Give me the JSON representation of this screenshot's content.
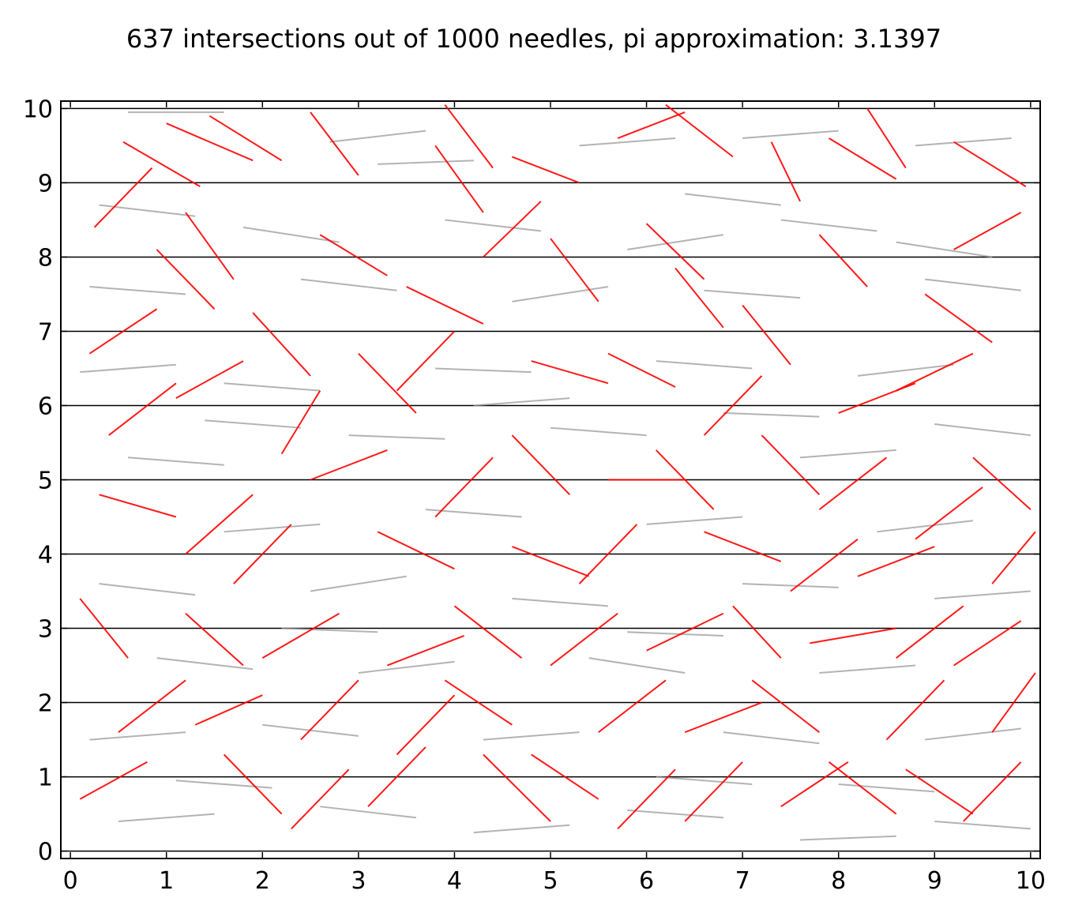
{
  "chart_data": {
    "type": "scatter",
    "title": "637 intersections out of 1000 needles, pi approximation: 3.1397",
    "xlabel": "",
    "ylabel": "",
    "xlim": [
      -0.1,
      10.1
    ],
    "ylim": [
      -0.1,
      10.1
    ],
    "x_ticks": [
      "0",
      "1",
      "2",
      "3",
      "4",
      "5",
      "6",
      "7",
      "8",
      "9",
      "10"
    ],
    "y_ticks": [
      "0",
      "1",
      "2",
      "3",
      "4",
      "5",
      "6",
      "7",
      "8",
      "9",
      "10"
    ],
    "horizontal_lines_y": [
      0,
      1,
      2,
      3,
      4,
      5,
      6,
      7,
      8,
      9,
      10
    ],
    "needle_length": 1,
    "needle_count": 1000,
    "intersections": 637,
    "pi_approximation": 3.1397,
    "colors": {
      "intersecting": "#ff0000",
      "non_intersecting": "#999999",
      "lines": "#000000"
    },
    "series": [
      {
        "name": "",
        "color": "#ff0000",
        "segments": [
          [
            0.55,
            9.55,
            1.35,
            8.95
          ],
          [
            1.45,
            9.9,
            2.2,
            9.3
          ],
          [
            2.5,
            9.95,
            3.0,
            9.1
          ],
          [
            3.8,
            9.5,
            4.3,
            8.6
          ],
          [
            4.6,
            9.35,
            5.3,
            9.0
          ],
          [
            6.2,
            10.05,
            6.9,
            9.35
          ],
          [
            7.3,
            9.55,
            7.6,
            8.75
          ],
          [
            8.3,
            10.0,
            8.7,
            9.2
          ],
          [
            9.2,
            9.55,
            9.95,
            8.95
          ],
          [
            0.25,
            8.4,
            0.85,
            9.2
          ],
          [
            1.2,
            8.6,
            1.7,
            7.7
          ],
          [
            2.6,
            8.3,
            3.3,
            7.75
          ],
          [
            3.5,
            7.6,
            4.3,
            7.1
          ],
          [
            5.0,
            8.25,
            5.5,
            7.4
          ],
          [
            6.3,
            7.85,
            6.8,
            7.05
          ],
          [
            7.8,
            8.3,
            8.3,
            7.6
          ],
          [
            8.9,
            7.5,
            9.6,
            6.85
          ],
          [
            0.2,
            6.7,
            0.9,
            7.3
          ],
          [
            1.9,
            7.25,
            2.5,
            6.4
          ],
          [
            3.4,
            6.2,
            4.0,
            7.0
          ],
          [
            5.6,
            6.7,
            6.3,
            6.25
          ],
          [
            7.0,
            7.35,
            7.5,
            6.55
          ],
          [
            8.6,
            6.2,
            9.4,
            6.7
          ],
          [
            0.4,
            5.6,
            1.1,
            6.3
          ],
          [
            2.2,
            5.35,
            2.6,
            6.2
          ],
          [
            4.6,
            5.6,
            5.2,
            4.8
          ],
          [
            6.1,
            5.4,
            6.7,
            4.6
          ],
          [
            7.8,
            4.6,
            8.5,
            5.3
          ],
          [
            9.4,
            5.3,
            10.0,
            4.6
          ],
          [
            0.3,
            4.8,
            1.1,
            4.5
          ],
          [
            1.7,
            3.6,
            2.3,
            4.4
          ],
          [
            3.2,
            4.3,
            4.0,
            3.8
          ],
          [
            5.3,
            3.6,
            5.9,
            4.4
          ],
          [
            6.6,
            4.3,
            7.4,
            3.9
          ],
          [
            8.2,
            3.7,
            9.0,
            4.1
          ],
          [
            0.1,
            3.4,
            0.6,
            2.6
          ],
          [
            2.0,
            2.6,
            2.8,
            3.2
          ],
          [
            4.0,
            3.3,
            4.7,
            2.6
          ],
          [
            6.0,
            2.7,
            6.8,
            3.2
          ],
          [
            7.7,
            2.8,
            8.6,
            3.0
          ],
          [
            9.2,
            2.5,
            9.9,
            3.1
          ],
          [
            0.5,
            1.6,
            1.2,
            2.3
          ],
          [
            2.4,
            1.5,
            3.0,
            2.3
          ],
          [
            3.9,
            2.3,
            4.6,
            1.7
          ],
          [
            5.5,
            1.6,
            6.2,
            2.3
          ],
          [
            7.1,
            2.3,
            7.8,
            1.6
          ],
          [
            8.5,
            1.5,
            9.1,
            2.3
          ],
          [
            0.1,
            0.7,
            0.8,
            1.2
          ],
          [
            1.6,
            1.3,
            2.2,
            0.5
          ],
          [
            3.1,
            0.6,
            3.7,
            1.4
          ],
          [
            4.8,
            1.3,
            5.5,
            0.7
          ],
          [
            6.4,
            0.4,
            7.0,
            1.2
          ],
          [
            7.9,
            1.2,
            8.6,
            0.5
          ],
          [
            9.3,
            0.4,
            9.9,
            1.2
          ],
          [
            1.0,
            9.8,
            1.9,
            9.3
          ],
          [
            3.9,
            10.05,
            4.4,
            9.2
          ],
          [
            5.7,
            9.6,
            6.4,
            9.95
          ],
          [
            7.9,
            9.6,
            8.6,
            9.05
          ],
          [
            0.9,
            8.1,
            1.5,
            7.3
          ],
          [
            4.3,
            8.0,
            4.9,
            8.75
          ],
          [
            6.0,
            8.45,
            6.6,
            7.7
          ],
          [
            9.2,
            8.1,
            9.9,
            8.6
          ],
          [
            1.1,
            6.1,
            1.8,
            6.6
          ],
          [
            3.0,
            6.7,
            3.6,
            5.9
          ],
          [
            4.8,
            6.6,
            5.6,
            6.3
          ],
          [
            6.6,
            5.6,
            7.2,
            6.4
          ],
          [
            8.0,
            5.9,
            8.8,
            6.3
          ],
          [
            2.5,
            5.0,
            3.3,
            5.4
          ],
          [
            3.8,
            4.5,
            4.4,
            5.3
          ],
          [
            5.6,
            5.0,
            6.4,
            5.0
          ],
          [
            7.2,
            5.6,
            7.8,
            4.8
          ],
          [
            8.8,
            4.2,
            9.5,
            4.9
          ],
          [
            1.2,
            4.0,
            1.9,
            4.8
          ],
          [
            4.6,
            4.1,
            5.4,
            3.7
          ],
          [
            7.5,
            3.5,
            8.2,
            4.2
          ],
          [
            9.6,
            3.6,
            10.05,
            4.3
          ],
          [
            1.2,
            3.2,
            1.8,
            2.5
          ],
          [
            3.3,
            2.5,
            4.1,
            2.9
          ],
          [
            5.0,
            2.5,
            5.7,
            3.2
          ],
          [
            6.9,
            3.3,
            7.4,
            2.6
          ],
          [
            8.6,
            2.6,
            9.3,
            3.3
          ],
          [
            1.3,
            1.7,
            2.0,
            2.1
          ],
          [
            3.4,
            1.3,
            4.0,
            2.1
          ],
          [
            6.4,
            1.6,
            7.2,
            2.0
          ],
          [
            9.6,
            1.6,
            10.05,
            2.4
          ],
          [
            2.3,
            0.3,
            2.9,
            1.1
          ],
          [
            4.3,
            1.3,
            5.0,
            0.4
          ],
          [
            5.7,
            0.3,
            6.3,
            1.1
          ],
          [
            7.4,
            0.6,
            8.1,
            1.2
          ],
          [
            8.7,
            1.1,
            9.4,
            0.5
          ]
        ]
      },
      {
        "name": "",
        "color": "#999999",
        "segments": [
          [
            0.6,
            9.95,
            1.6,
            9.95
          ],
          [
            2.7,
            9.55,
            3.7,
            9.7
          ],
          [
            5.3,
            9.5,
            6.3,
            9.6
          ],
          [
            7.0,
            9.6,
            8.0,
            9.7
          ],
          [
            8.8,
            9.5,
            9.8,
            9.6
          ],
          [
            0.3,
            8.7,
            1.3,
            8.55
          ],
          [
            1.8,
            8.4,
            2.8,
            8.2
          ],
          [
            3.9,
            8.5,
            4.9,
            8.35
          ],
          [
            5.8,
            8.1,
            6.8,
            8.3
          ],
          [
            7.4,
            8.5,
            8.4,
            8.35
          ],
          [
            8.6,
            8.2,
            9.6,
            8.0
          ],
          [
            0.2,
            7.6,
            1.2,
            7.5
          ],
          [
            2.4,
            7.7,
            3.4,
            7.55
          ],
          [
            4.6,
            7.4,
            5.6,
            7.6
          ],
          [
            6.6,
            7.55,
            7.6,
            7.45
          ],
          [
            8.9,
            7.7,
            9.9,
            7.55
          ],
          [
            0.1,
            6.45,
            1.1,
            6.55
          ],
          [
            1.6,
            6.3,
            2.6,
            6.2
          ],
          [
            3.8,
            6.5,
            4.8,
            6.45
          ],
          [
            6.1,
            6.6,
            7.1,
            6.5
          ],
          [
            8.2,
            6.4,
            9.2,
            6.55
          ],
          [
            0.6,
            5.3,
            1.6,
            5.2
          ],
          [
            2.9,
            5.6,
            3.9,
            5.55
          ],
          [
            5.0,
            5.7,
            6.0,
            5.6
          ],
          [
            7.6,
            5.3,
            8.6,
            5.4
          ],
          [
            9.0,
            5.75,
            10.0,
            5.6
          ],
          [
            1.6,
            4.3,
            2.6,
            4.4
          ],
          [
            3.7,
            4.6,
            4.7,
            4.5
          ],
          [
            6.0,
            4.4,
            7.0,
            4.5
          ],
          [
            8.4,
            4.3,
            9.4,
            4.45
          ],
          [
            0.3,
            3.6,
            1.3,
            3.45
          ],
          [
            2.5,
            3.5,
            3.5,
            3.7
          ],
          [
            4.6,
            3.4,
            5.6,
            3.3
          ],
          [
            7.0,
            3.6,
            8.0,
            3.55
          ],
          [
            9.0,
            3.4,
            10.0,
            3.5
          ],
          [
            0.9,
            2.6,
            1.9,
            2.45
          ],
          [
            3.0,
            2.4,
            4.0,
            2.55
          ],
          [
            5.4,
            2.6,
            6.4,
            2.4
          ],
          [
            7.8,
            2.4,
            8.8,
            2.5
          ],
          [
            0.2,
            1.5,
            1.2,
            1.6
          ],
          [
            2.0,
            1.7,
            3.0,
            1.55
          ],
          [
            4.3,
            1.5,
            5.3,
            1.6
          ],
          [
            6.8,
            1.6,
            7.8,
            1.45
          ],
          [
            8.9,
            1.5,
            9.9,
            1.65
          ],
          [
            0.5,
            0.4,
            1.5,
            0.5
          ],
          [
            2.6,
            0.6,
            3.6,
            0.45
          ],
          [
            4.2,
            0.25,
            5.2,
            0.35
          ],
          [
            5.8,
            0.55,
            6.8,
            0.45
          ],
          [
            7.6,
            0.15,
            8.6,
            0.2
          ],
          [
            9.0,
            0.4,
            10.0,
            0.3
          ],
          [
            3.2,
            9.25,
            4.2,
            9.3
          ],
          [
            6.4,
            8.85,
            7.4,
            8.7
          ],
          [
            1.4,
            5.8,
            2.4,
            5.7
          ],
          [
            4.2,
            6.0,
            5.2,
            6.1
          ],
          [
            6.8,
            5.9,
            7.8,
            5.85
          ],
          [
            2.2,
            3.0,
            3.2,
            2.95
          ],
          [
            5.8,
            2.95,
            6.8,
            2.9
          ],
          [
            1.1,
            0.95,
            2.1,
            0.85
          ],
          [
            6.1,
            1.0,
            7.1,
            0.9
          ],
          [
            8.0,
            0.9,
            9.0,
            0.8
          ]
        ]
      }
    ]
  }
}
